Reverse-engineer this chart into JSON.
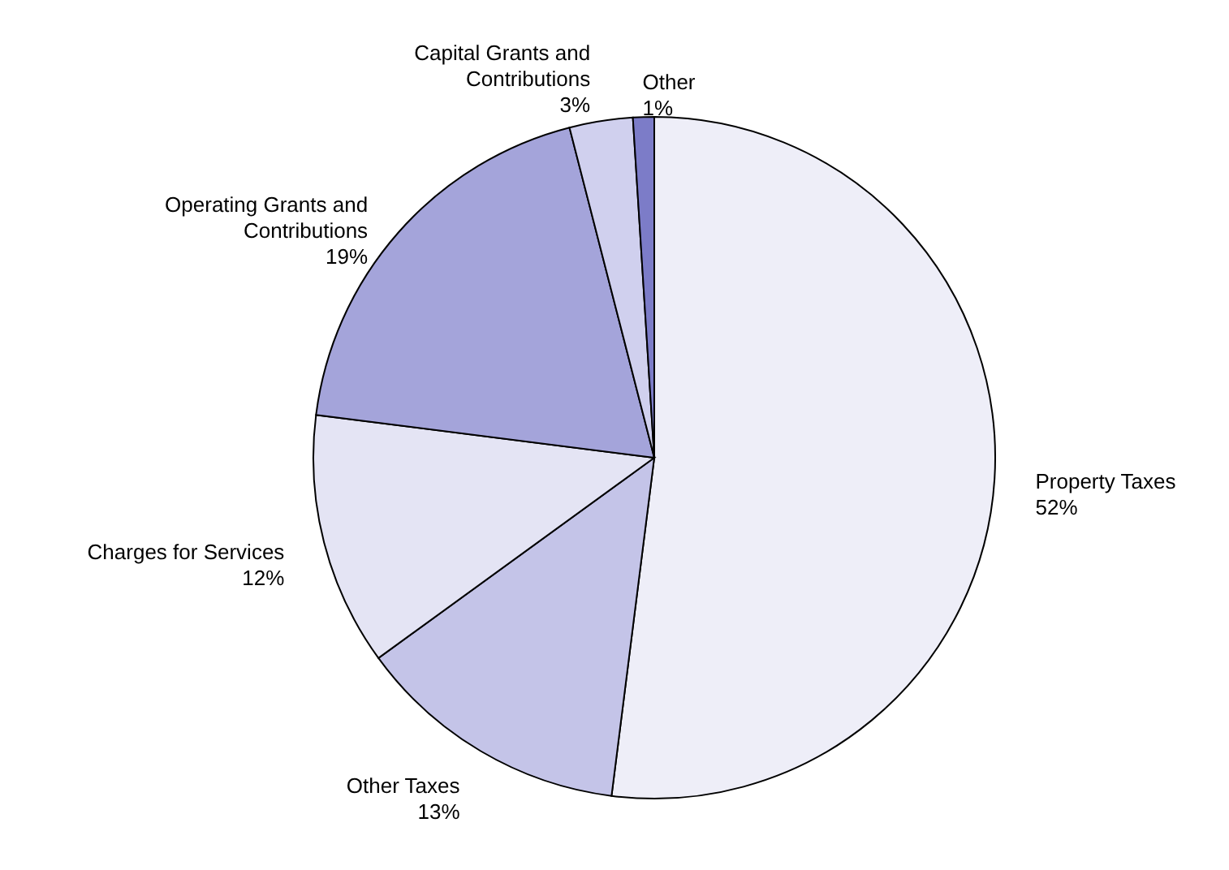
{
  "chart_data": {
    "type": "pie",
    "categories": [
      "Property Taxes",
      "Other Taxes",
      "Charges for Services",
      "Operating Grants and Contributions",
      "Capital Grants and Contributions",
      "Other"
    ],
    "values": [
      52,
      13,
      12,
      19,
      3,
      1
    ],
    "value_labels": [
      "52%",
      "13%",
      "12%",
      "19%",
      "3%",
      "1%"
    ],
    "colors": [
      "#eeeef8",
      "#c4c4e8",
      "#e4e4f4",
      "#a4a4da",
      "#d0d0ee",
      "#7c7cc8"
    ]
  }
}
